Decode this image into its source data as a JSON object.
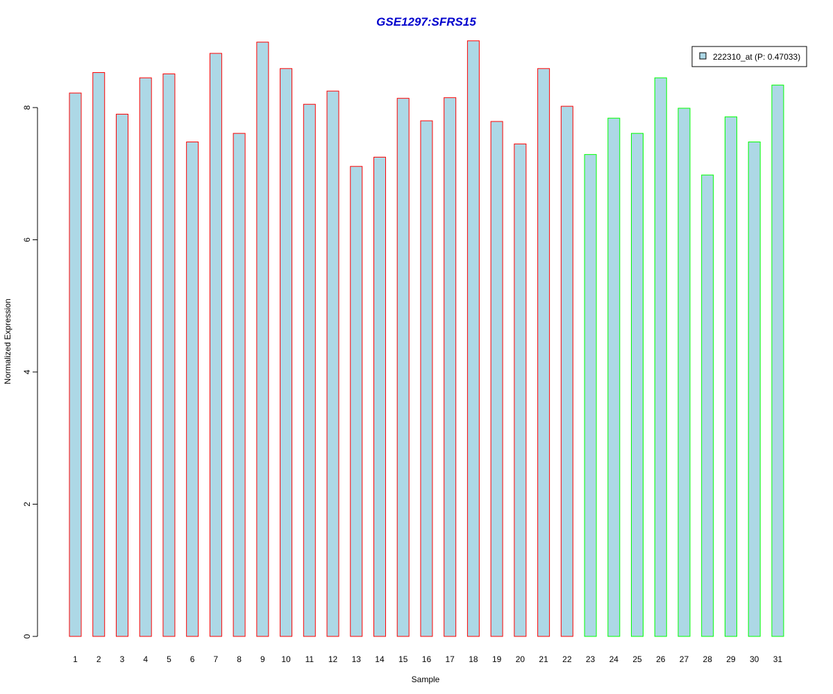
{
  "chart_data": {
    "type": "bar",
    "title": "GSE1297:SFRS15",
    "xlabel": "Sample",
    "ylabel": "Normalized Expression",
    "ylim": [
      0,
      9.0
    ],
    "yticks": [
      0,
      2,
      4,
      6,
      8
    ],
    "categories": [
      "1",
      "2",
      "3",
      "4",
      "5",
      "6",
      "7",
      "8",
      "9",
      "10",
      "11",
      "12",
      "13",
      "14",
      "15",
      "16",
      "17",
      "18",
      "19",
      "20",
      "21",
      "22",
      "23",
      "24",
      "25",
      "26",
      "27",
      "28",
      "29",
      "30",
      "31"
    ],
    "values": [
      8.22,
      8.53,
      7.9,
      8.45,
      8.51,
      7.48,
      8.82,
      7.61,
      8.99,
      8.59,
      8.05,
      8.25,
      7.11,
      7.25,
      8.14,
      7.8,
      8.15,
      9.01,
      7.79,
      7.45,
      8.59,
      8.02,
      7.29,
      7.84,
      7.61,
      8.45,
      7.99,
      6.98,
      7.86,
      7.48,
      8.34
    ],
    "groups": [
      "red",
      "red",
      "red",
      "red",
      "red",
      "red",
      "red",
      "red",
      "red",
      "red",
      "red",
      "red",
      "red",
      "red",
      "red",
      "red",
      "red",
      "red",
      "red",
      "red",
      "red",
      "red",
      "green",
      "green",
      "green",
      "green",
      "green",
      "green",
      "green",
      "green",
      "green"
    ],
    "series": [
      {
        "name": "222310_at (P: 0.47033)"
      }
    ],
    "legend_position": "top-right",
    "grid": false,
    "colors": {
      "fill": "#add8e6",
      "border_red": "#ff0000",
      "border_green": "#00ff00",
      "title": "#0000cd",
      "axis": "#000000"
    }
  }
}
